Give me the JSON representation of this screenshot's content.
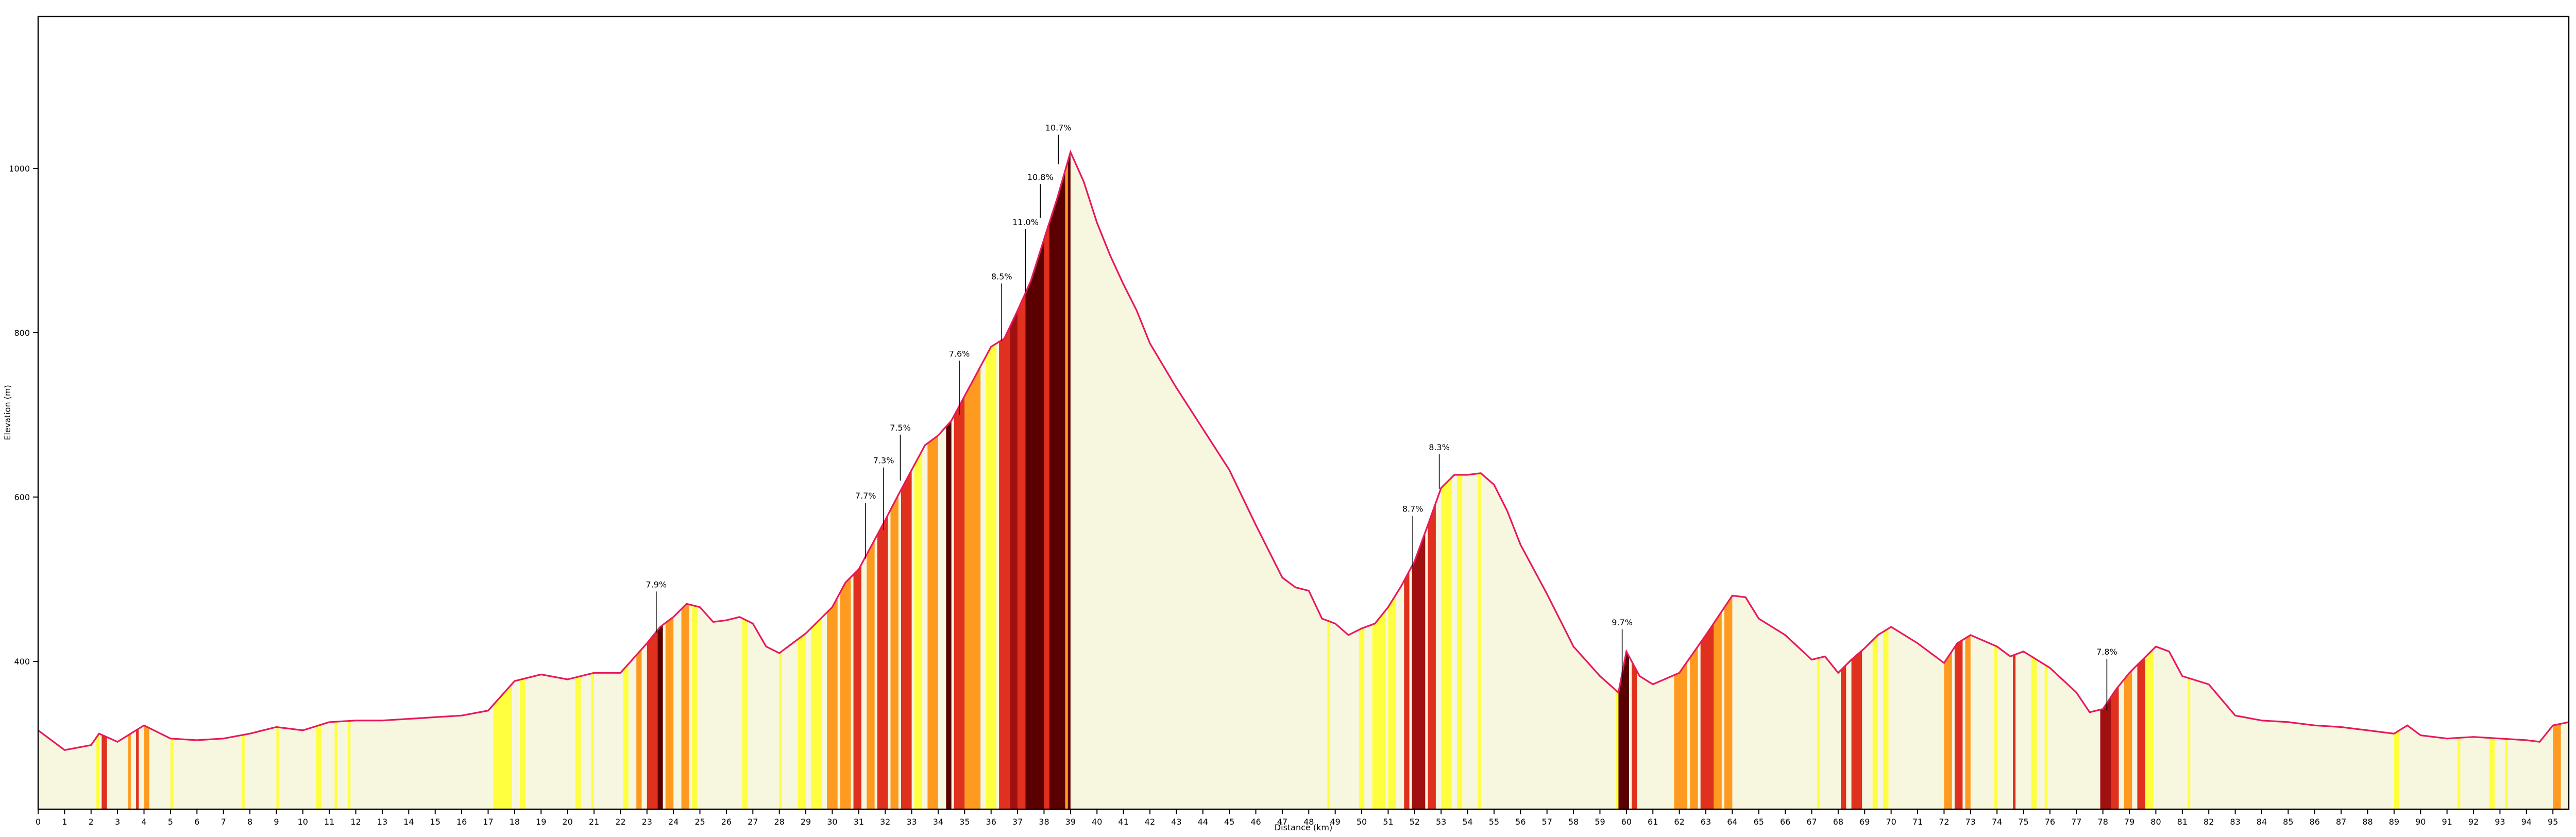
{
  "chart_data": {
    "type": "elevation_profile",
    "xlabel": "Distance (km)",
    "ylabel": "Elevation (m)",
    "line_color": "#e8175d",
    "fill_color": "#f7f6df",
    "xlim": [
      0,
      95.6
    ],
    "ylim": [
      220,
      1185
    ],
    "xticks": [
      0,
      1,
      2,
      3,
      4,
      5,
      6,
      7,
      8,
      9,
      10,
      11,
      12,
      13,
      14,
      15,
      16,
      17,
      18,
      19,
      20,
      21,
      22,
      23,
      24,
      25,
      26,
      27,
      28,
      29,
      30,
      31,
      32,
      33,
      34,
      35,
      36,
      37,
      38,
      39,
      40,
      41,
      42,
      43,
      44,
      45,
      46,
      47,
      48,
      49,
      50,
      51,
      52,
      53,
      54,
      55,
      56,
      57,
      58,
      59,
      60,
      61,
      62,
      63,
      64,
      65,
      66,
      67,
      68,
      69,
      70,
      71,
      72,
      73,
      74,
      75,
      76,
      77,
      78,
      79,
      80,
      81,
      82,
      83,
      84,
      85,
      86,
      87,
      88,
      89,
      90,
      91,
      92,
      93,
      94,
      95
    ],
    "yticks": [
      400,
      600,
      800,
      1000
    ],
    "x": [
      0,
      1,
      2,
      2.3,
      3,
      4,
      5,
      6,
      7,
      8,
      9,
      10,
      11,
      12,
      13,
      14,
      15,
      16,
      17,
      18,
      19,
      20,
      21,
      22,
      23,
      23.5,
      24,
      24.5,
      25,
      25.5,
      26,
      26.5,
      27,
      27.5,
      28,
      28.5,
      29,
      30,
      30.5,
      31,
      31.5,
      32,
      32.5,
      33,
      33.5,
      34,
      34.5,
      35,
      35.5,
      36,
      36.5,
      37,
      37.5,
      38,
      38.5,
      39,
      39.5,
      40,
      40.5,
      41,
      41.5,
      42,
      43,
      44,
      45,
      46,
      47,
      47.5,
      48,
      48.5,
      49,
      49.5,
      50,
      50.5,
      51,
      51.5,
      52,
      52.5,
      53,
      53.5,
      54,
      54.5,
      55,
      55.5,
      56,
      57,
      58,
      59,
      59.7,
      60,
      60.5,
      61,
      62,
      63,
      64,
      64.5,
      65,
      66,
      67,
      67.5,
      68,
      68.5,
      69,
      69.5,
      70,
      71,
      72,
      72.5,
      73,
      74,
      74.5,
      75,
      76,
      77,
      77.5,
      78,
      78.5,
      79,
      80,
      80.5,
      81,
      82,
      83,
      84,
      85,
      86,
      87,
      88,
      89,
      89.5,
      90,
      91,
      92,
      93,
      94,
      94.5,
      95,
      95.6
    ],
    "values": [
      316,
      292,
      298,
      312,
      302,
      322,
      306,
      304,
      306,
      312,
      320,
      316,
      326,
      328,
      328,
      330,
      332,
      334,
      340,
      376,
      384,
      378,
      386,
      386,
      422,
      442,
      454,
      470,
      466,
      448,
      450,
      454,
      446,
      418,
      410,
      422,
      434,
      466,
      496,
      512,
      542,
      572,
      603,
      633,
      663,
      675,
      693,
      723,
      753,
      783,
      793,
      827,
      863,
      914,
      964,
      1020,
      984,
      934,
      894,
      859,
      827,
      787,
      733,
      683,
      633,
      566,
      502,
      490,
      486,
      452,
      446,
      432,
      440,
      446,
      466,
      492,
      522,
      566,
      611,
      627,
      627,
      629,
      615,
      583,
      542,
      482,
      418,
      382,
      362,
      412,
      382,
      372,
      386,
      432,
      480,
      478,
      452,
      432,
      402,
      406,
      386,
      402,
      416,
      432,
      442,
      422,
      398,
      422,
      432,
      418,
      406,
      412,
      392,
      362,
      338,
      342,
      366,
      386,
      418,
      412,
      382,
      372,
      334,
      328,
      326,
      322,
      320,
      316,
      312,
      322,
      310,
      306,
      308,
      306,
      304,
      302,
      322,
      326
    ],
    "bands": [
      {
        "start": 2.2,
        "end": 2.3,
        "color": "#ffff40"
      },
      {
        "start": 2.4,
        "end": 2.6,
        "color": "#e0301e"
      },
      {
        "start": 3.4,
        "end": 3.5,
        "color": "#ff9a20"
      },
      {
        "start": 3.7,
        "end": 3.8,
        "color": "#e0301e"
      },
      {
        "start": 4.0,
        "end": 4.2,
        "color": "#ff9a20"
      },
      {
        "start": 5.0,
        "end": 5.1,
        "color": "#ffff40"
      },
      {
        "start": 7.7,
        "end": 7.8,
        "color": "#ffff40"
      },
      {
        "start": 9.0,
        "end": 9.1,
        "color": "#ffff40"
      },
      {
        "start": 10.5,
        "end": 10.7,
        "color": "#ffff40"
      },
      {
        "start": 11.2,
        "end": 11.3,
        "color": "#ffff40"
      },
      {
        "start": 11.7,
        "end": 11.8,
        "color": "#ffff40"
      },
      {
        "start": 17.2,
        "end": 17.9,
        "color": "#ffff40"
      },
      {
        "start": 18.2,
        "end": 18.4,
        "color": "#ffff40"
      },
      {
        "start": 20.3,
        "end": 20.5,
        "color": "#ffff40"
      },
      {
        "start": 20.9,
        "end": 21.0,
        "color": "#ffff40"
      },
      {
        "start": 22.1,
        "end": 22.3,
        "color": "#ffff40"
      },
      {
        "start": 22.6,
        "end": 22.8,
        "color": "#ff9a20"
      },
      {
        "start": 23.0,
        "end": 23.4,
        "color": "#e0301e"
      },
      {
        "start": 23.4,
        "end": 23.6,
        "color": "#5a0000"
      },
      {
        "start": 23.7,
        "end": 24.0,
        "color": "#ff9a20"
      },
      {
        "start": 24.3,
        "end": 24.6,
        "color": "#ff9a20"
      },
      {
        "start": 24.7,
        "end": 24.9,
        "color": "#ffff40"
      },
      {
        "start": 26.6,
        "end": 26.8,
        "color": "#ffff40"
      },
      {
        "start": 28.0,
        "end": 28.1,
        "color": "#ffff40"
      },
      {
        "start": 28.7,
        "end": 29.0,
        "color": "#ffff40"
      },
      {
        "start": 29.2,
        "end": 29.6,
        "color": "#ffff40"
      },
      {
        "start": 29.8,
        "end": 30.2,
        "color": "#ff9a20"
      },
      {
        "start": 30.3,
        "end": 30.7,
        "color": "#ff9a20"
      },
      {
        "start": 30.8,
        "end": 31.1,
        "color": "#e0301e"
      },
      {
        "start": 31.3,
        "end": 31.6,
        "color": "#ff9a20"
      },
      {
        "start": 31.7,
        "end": 32.1,
        "color": "#e0301e"
      },
      {
        "start": 32.2,
        "end": 32.5,
        "color": "#ff9a20"
      },
      {
        "start": 32.6,
        "end": 33.0,
        "color": "#e0301e"
      },
      {
        "start": 33.1,
        "end": 33.4,
        "color": "#ffff40"
      },
      {
        "start": 33.6,
        "end": 34.0,
        "color": "#ff9a20"
      },
      {
        "start": 34.3,
        "end": 34.5,
        "color": "#5a0000"
      },
      {
        "start": 34.6,
        "end": 35.0,
        "color": "#e0301e"
      },
      {
        "start": 35.0,
        "end": 35.6,
        "color": "#ff9a20"
      },
      {
        "start": 35.8,
        "end": 36.2,
        "color": "#ffff40"
      },
      {
        "start": 36.3,
        "end": 36.7,
        "color": "#e0301e"
      },
      {
        "start": 36.7,
        "end": 37.0,
        "color": "#a01010"
      },
      {
        "start": 37.0,
        "end": 37.3,
        "color": "#e0301e"
      },
      {
        "start": 37.3,
        "end": 38.0,
        "color": "#5a0000"
      },
      {
        "start": 38.0,
        "end": 38.2,
        "color": "#e0301e"
      },
      {
        "start": 38.2,
        "end": 38.8,
        "color": "#5a0000"
      },
      {
        "start": 38.8,
        "end": 38.9,
        "color": "#ff9a20"
      },
      {
        "start": 38.9,
        "end": 39.0,
        "color": "#5a0000"
      },
      {
        "start": 48.7,
        "end": 48.8,
        "color": "#ffff40"
      },
      {
        "start": 49.9,
        "end": 50.1,
        "color": "#ffff40"
      },
      {
        "start": 50.4,
        "end": 50.9,
        "color": "#ffff40"
      },
      {
        "start": 51.0,
        "end": 51.3,
        "color": "#ffff40"
      },
      {
        "start": 51.6,
        "end": 51.8,
        "color": "#e0301e"
      },
      {
        "start": 51.9,
        "end": 52.4,
        "color": "#a01010"
      },
      {
        "start": 52.5,
        "end": 52.8,
        "color": "#e0301e"
      },
      {
        "start": 53.0,
        "end": 53.4,
        "color": "#ffff40"
      },
      {
        "start": 53.6,
        "end": 53.8,
        "color": "#ffff40"
      },
      {
        "start": 54.4,
        "end": 54.5,
        "color": "#ffff40"
      },
      {
        "start": 59.6,
        "end": 59.7,
        "color": "#ffff40"
      },
      {
        "start": 59.7,
        "end": 60.1,
        "color": "#5a0000"
      },
      {
        "start": 60.2,
        "end": 60.4,
        "color": "#e0301e"
      },
      {
        "start": 61.8,
        "end": 62.3,
        "color": "#ff9a20"
      },
      {
        "start": 62.4,
        "end": 62.7,
        "color": "#ff9a20"
      },
      {
        "start": 62.8,
        "end": 63.3,
        "color": "#e0301e"
      },
      {
        "start": 63.3,
        "end": 63.6,
        "color": "#ff9a20"
      },
      {
        "start": 63.7,
        "end": 64.0,
        "color": "#ff9a20"
      },
      {
        "start": 67.2,
        "end": 67.3,
        "color": "#ffff40"
      },
      {
        "start": 68.1,
        "end": 68.3,
        "color": "#e0301e"
      },
      {
        "start": 68.5,
        "end": 68.9,
        "color": "#e0301e"
      },
      {
        "start": 69.3,
        "end": 69.5,
        "color": "#ffff40"
      },
      {
        "start": 69.7,
        "end": 69.9,
        "color": "#ffff40"
      },
      {
        "start": 72.0,
        "end": 72.3,
        "color": "#ff9a20"
      },
      {
        "start": 72.4,
        "end": 72.7,
        "color": "#e0301e"
      },
      {
        "start": 72.8,
        "end": 73.0,
        "color": "#ff9a20"
      },
      {
        "start": 73.9,
        "end": 74.0,
        "color": "#ffff40"
      },
      {
        "start": 74.6,
        "end": 74.7,
        "color": "#e0301e"
      },
      {
        "start": 75.3,
        "end": 75.5,
        "color": "#ffff40"
      },
      {
        "start": 75.8,
        "end": 75.9,
        "color": "#ffff40"
      },
      {
        "start": 77.9,
        "end": 78.3,
        "color": "#a01010"
      },
      {
        "start": 78.3,
        "end": 78.6,
        "color": "#e0301e"
      },
      {
        "start": 78.8,
        "end": 79.1,
        "color": "#ff9a20"
      },
      {
        "start": 79.3,
        "end": 79.6,
        "color": "#e0301e"
      },
      {
        "start": 79.6,
        "end": 79.9,
        "color": "#ffff40"
      },
      {
        "start": 81.2,
        "end": 81.3,
        "color": "#ffff40"
      },
      {
        "start": 89.0,
        "end": 89.2,
        "color": "#ffff40"
      },
      {
        "start": 91.4,
        "end": 91.5,
        "color": "#ffff40"
      },
      {
        "start": 92.6,
        "end": 92.8,
        "color": "#ffff40"
      },
      {
        "start": 93.2,
        "end": 93.3,
        "color": "#ffff40"
      },
      {
        "start": 95.0,
        "end": 95.3,
        "color": "#ff9a20"
      }
    ],
    "annotations": [
      {
        "text": "7.9%",
        "x": 23.35,
        "y": 435,
        "text_y": 490
      },
      {
        "text": "7.7%",
        "x": 31.26,
        "y": 525,
        "text_y": 598
      },
      {
        "text": "7.3%",
        "x": 31.94,
        "y": 560,
        "text_y": 641
      },
      {
        "text": "7.5%",
        "x": 32.57,
        "y": 620,
        "text_y": 681
      },
      {
        "text": "7.6%",
        "x": 34.8,
        "y": 700,
        "text_y": 771
      },
      {
        "text": "8.5%",
        "x": 36.4,
        "y": 790,
        "text_y": 865
      },
      {
        "text": "11.0%",
        "x": 37.3,
        "y": 850,
        "text_y": 931
      },
      {
        "text": "10.8%",
        "x": 37.86,
        "y": 940,
        "text_y": 986
      },
      {
        "text": "10.7%",
        "x": 38.54,
        "y": 1005,
        "text_y": 1046
      },
      {
        "text": "8.7%",
        "x": 51.93,
        "y": 515,
        "text_y": 582
      },
      {
        "text": "8.3%",
        "x": 52.93,
        "y": 610,
        "text_y": 657
      },
      {
        "text": "9.7%",
        "x": 59.84,
        "y": 375,
        "text_y": 444
      },
      {
        "text": "7.8%",
        "x": 78.15,
        "y": 340,
        "text_y": 408
      }
    ]
  }
}
